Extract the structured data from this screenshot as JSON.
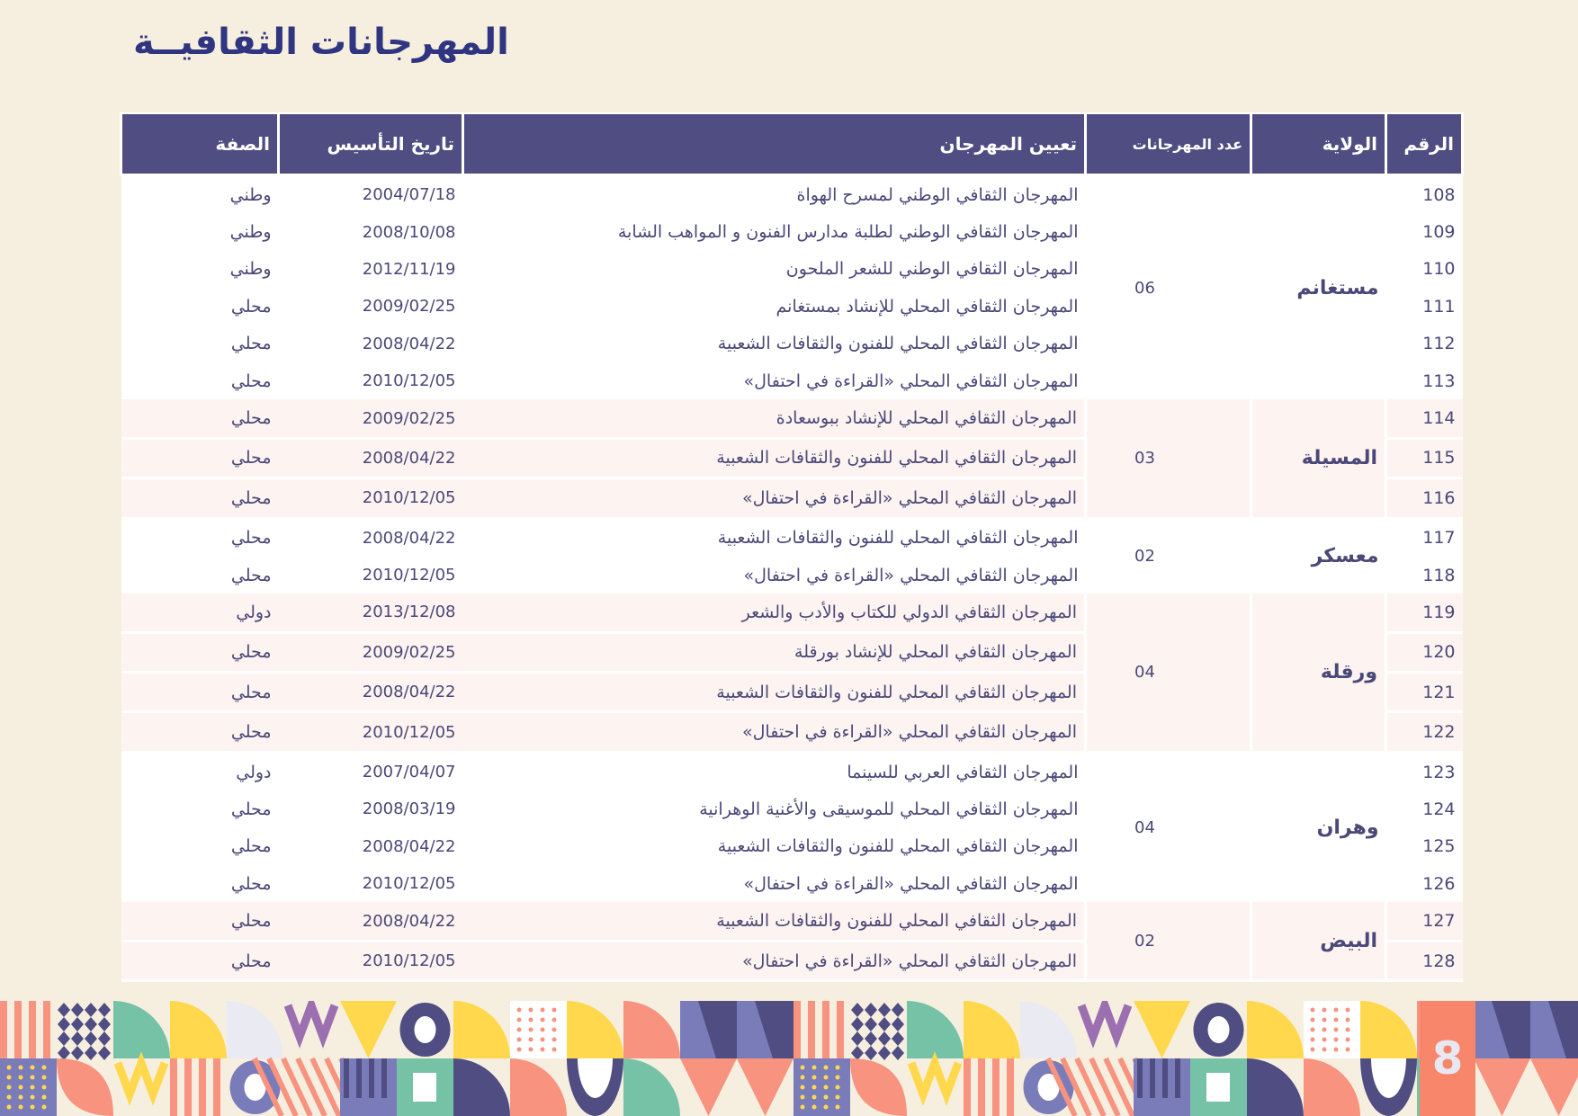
{
  "title": "المهرجانات الثقافيــة",
  "table": {
    "headers": [
      "الرقم",
      "الولاية",
      "عدد المهرجانات",
      "تعيين المهرجان",
      "تاريخ التأسيس",
      "الصفة"
    ],
    "groups": [
      {
        "wilaya": "مستغانم",
        "count": "06",
        "rows": [
          {
            "num": "108",
            "name": "المهرجان الثقافي الوطني لمسرح الهواة",
            "date": "2004/07/18",
            "type": "وطني"
          },
          {
            "num": "109",
            "name": "المهرجان الثقافي الوطني لطلبة مدارس الفنون و المواهب الشابة",
            "date": "2008/10/08",
            "type": "وطني"
          },
          {
            "num": "110",
            "name": "المهرجان الثقافي الوطني للشعر الملحون",
            "date": "2012/11/19",
            "type": "وطني"
          },
          {
            "num": "111",
            "name": "المهرجان الثقافي المحلي للإنشاد بمستغانم",
            "date": "2009/02/25",
            "type": "محلي"
          },
          {
            "num": "112",
            "name": "المهرجان الثقافي المحلي للفنون والثقافات الشعبية",
            "date": "2008/04/22",
            "type": "محلي"
          },
          {
            "num": "113",
            "name": "المهرجان الثقافي المحلي «القراءة في احتفال»",
            "date": "2010/12/05",
            "type": "محلي"
          }
        ]
      },
      {
        "wilaya": "المسيلة",
        "count": "03",
        "rows": [
          {
            "num": "114",
            "name": "المهرجان الثقافي المحلي للإنشاد ببوسعادة",
            "date": "2009/02/25",
            "type": "محلي"
          },
          {
            "num": "115",
            "name": "المهرجان الثقافي المحلي للفنون والثقافات الشعبية",
            "date": "2008/04/22",
            "type": "محلي"
          },
          {
            "num": "116",
            "name": "المهرجان الثقافي المحلي «القراءة في احتفال»",
            "date": "2010/12/05",
            "type": "محلي"
          }
        ]
      },
      {
        "wilaya": "معسكر",
        "count": "02",
        "rows": [
          {
            "num": "117",
            "name": "المهرجان الثقافي المحلي للفنون والثقافات الشعبية",
            "date": "2008/04/22",
            "type": "محلي"
          },
          {
            "num": "118",
            "name": "المهرجان الثقافي المحلي «القراءة في احتفال»",
            "date": "2010/12/05",
            "type": "محلي"
          }
        ]
      },
      {
        "wilaya": "ورقلة",
        "count": "04",
        "rows": [
          {
            "num": "119",
            "name": "المهرجان الثقافي الدولي للكتاب والأدب والشعر",
            "date": "2013/12/08",
            "type": "دولي"
          },
          {
            "num": "120",
            "name": "المهرجان الثقافي المحلي للإنشاد بورقلة",
            "date": "2009/02/25",
            "type": "محلي"
          },
          {
            "num": "121",
            "name": "المهرجان الثقافي المحلي للفنون والثقافات الشعبية",
            "date": "2008/04/22",
            "type": "محلي"
          },
          {
            "num": "122",
            "name": "المهرجان الثقافي المحلي «القراءة في احتفال»",
            "date": "2010/12/05",
            "type": "محلي"
          }
        ]
      },
      {
        "wilaya": "وهران",
        "count": "04",
        "rows": [
          {
            "num": "123",
            "name": "المهرجان الثقافي العربي للسينما",
            "date": "2007/04/07",
            "type": "دولي"
          },
          {
            "num": "124",
            "name": "المهرجان الثقافي المحلي للموسيقى والأغنية الوهرانية",
            "date": "2008/03/19",
            "type": "محلي"
          },
          {
            "num": "125",
            "name": "المهرجان الثقافي المحلي للفنون والثقافات الشعبية",
            "date": "2008/04/22",
            "type": "محلي"
          },
          {
            "num": "126",
            "name": "المهرجان الثقافي المحلي «القراءة في احتفال»",
            "date": "2010/12/05",
            "type": "محلي"
          }
        ]
      },
      {
        "wilaya": "البيض",
        "count": "02",
        "rows": [
          {
            "num": "127",
            "name": "المهرجان الثقافي المحلي للفنون والثقافات الشعبية",
            "date": "2008/04/22",
            "type": "محلي"
          },
          {
            "num": "128",
            "name": "المهرجان الثقافي المحلي «القراءة في احتفال»",
            "date": "2010/12/05",
            "type": "محلي"
          }
        ]
      }
    ]
  },
  "page_number": "8",
  "colors": {
    "header_bg": "#4f4d82",
    "title": "#2f3580",
    "background": "#f6efdf",
    "row_alt": "#fdf3f0",
    "page_box": "#f7866a"
  }
}
